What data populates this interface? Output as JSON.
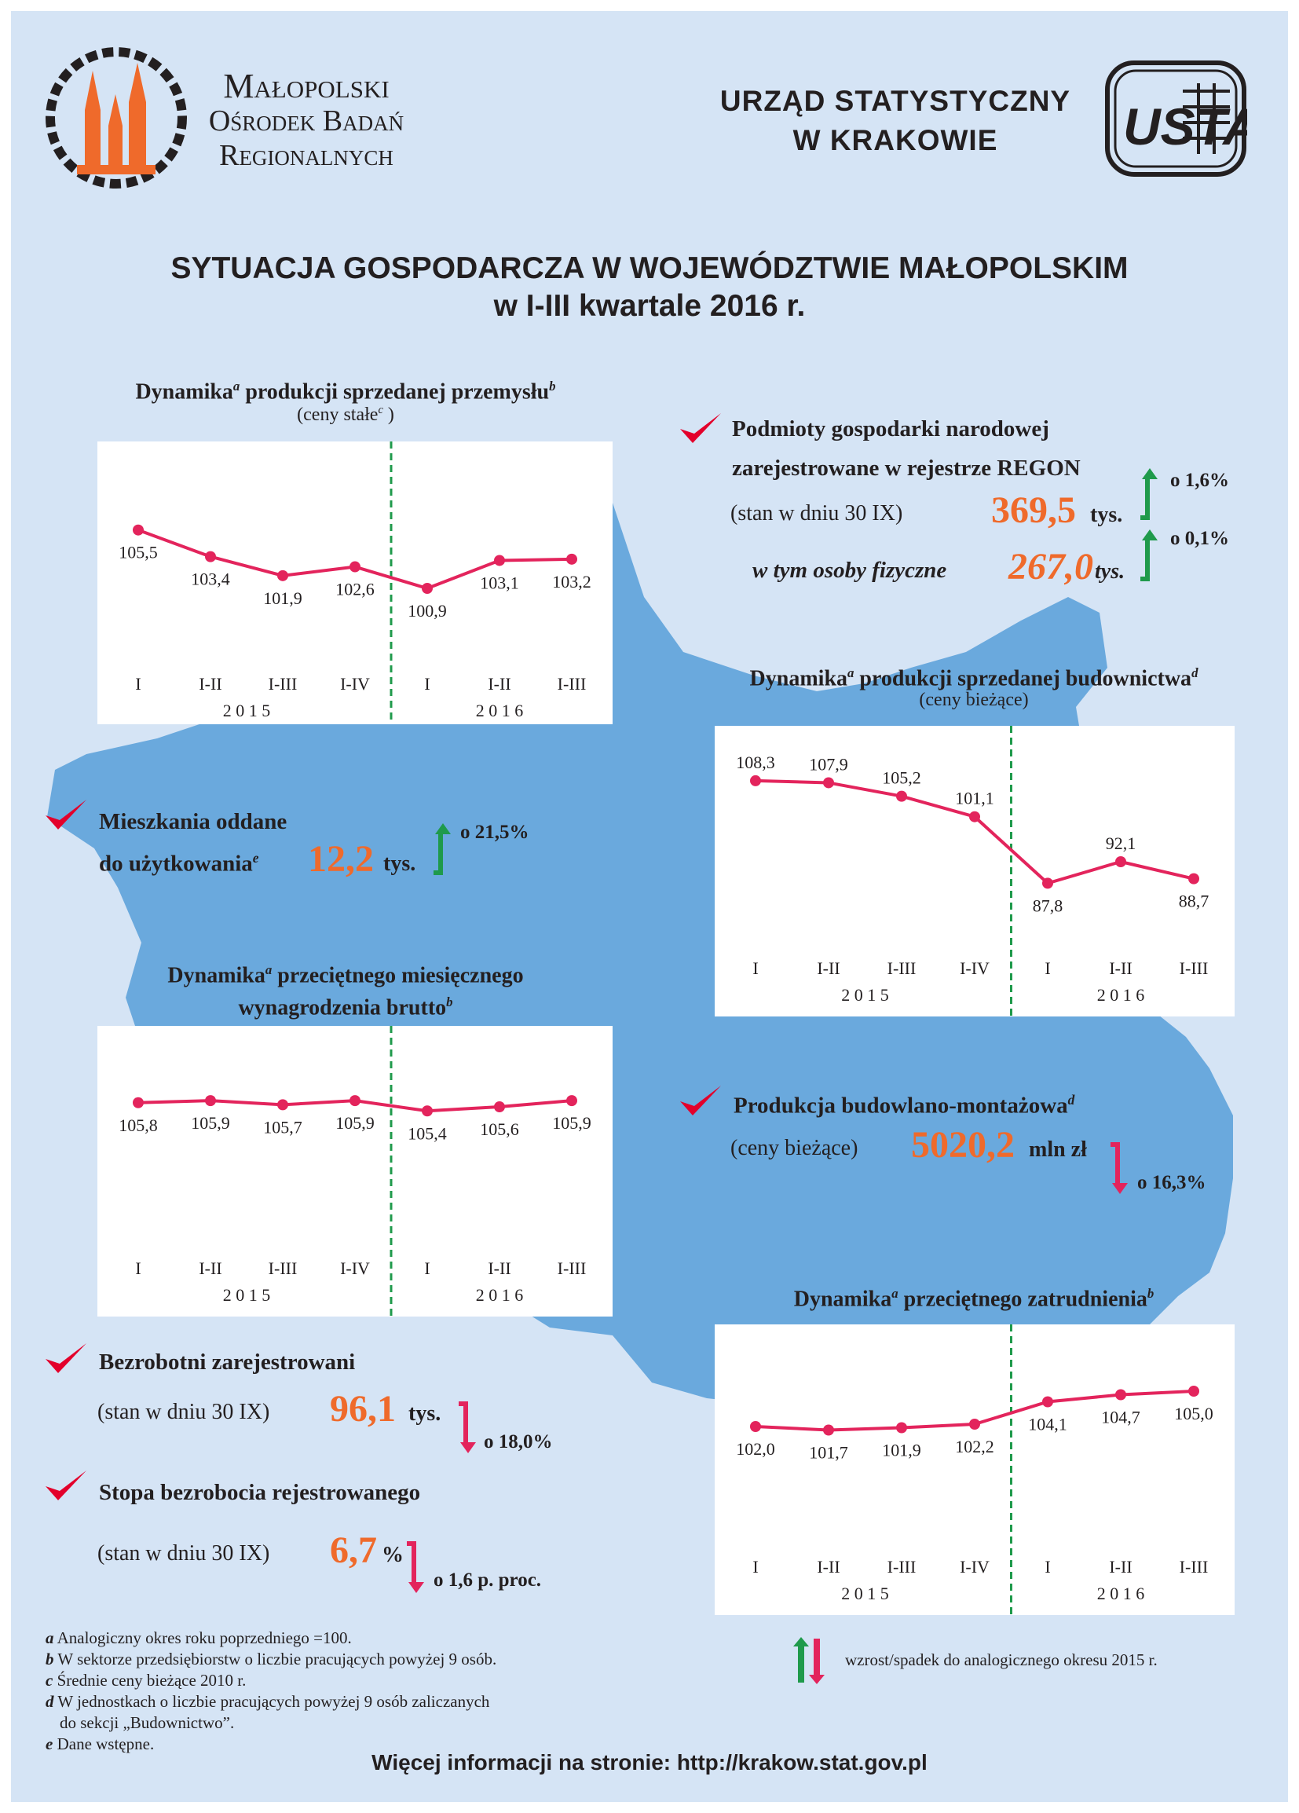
{
  "header": {
    "mobr": {
      "line1": "Małopolski",
      "line2": "Ośrodek Badań",
      "line3": "Regionalnych"
    },
    "office": {
      "line1": "URZĄD  STATYSTYCZNY",
      "line2": "W  KRAKOWIE"
    },
    "logo_mark": "USTAT"
  },
  "title": {
    "line1": "SYTUACJA GOSPODARCZA W WOJEWÓDZTWIE MAŁOPOLSKIM",
    "line2": "w I-III kwartale 2016 r."
  },
  "colors": {
    "background": "#d5e4f5",
    "map": "#6aa9dd",
    "series_line": "#e3245c",
    "divider": "#1f9a4b",
    "highlight": "#ef6a2b",
    "up_arrow": "#1f9a4b",
    "down_arrow": "#e3245c",
    "checkmark": "#e3002b"
  },
  "chart_data": [
    {
      "type": "line",
      "title_a": "Dynamika",
      "title_sup1": "a",
      "title_b": " produkcji sprzedanej przemysłu",
      "title_sup2": "b",
      "subtitle": "(ceny stałe",
      "subtitle_sup": "c",
      "subtitle_end": ")",
      "categories": [
        "I",
        "I-II",
        "I-III",
        "I-IV",
        "I",
        "I-II",
        "I-III"
      ],
      "year_groups": [
        {
          "label": "2 0 1 5",
          "from": 0,
          "to": 3
        },
        {
          "label": "2 0 1 6",
          "from": 4,
          "to": 6
        }
      ],
      "values": [
        105.5,
        103.4,
        101.9,
        102.6,
        100.9,
        103.1,
        103.2
      ],
      "value_labels": [
        "105,5",
        "103,4",
        "101,9",
        "102,6",
        "100,9",
        "103,1",
        "103,2"
      ],
      "label_pos": [
        "below",
        "below",
        "below",
        "below",
        "below",
        "below",
        "below"
      ],
      "ylim": [
        97,
        110
      ],
      "divider_after_index": 3
    },
    {
      "type": "line",
      "title_a": "Dynamika",
      "title_sup1": "a",
      "title_b": " produkcji sprzedanej budownictwa",
      "title_sup2": "d",
      "subtitle": "(ceny bieżące)",
      "categories": [
        "I",
        "I-II",
        "I-III",
        "I-IV",
        "I",
        "I-II",
        "I-III"
      ],
      "year_groups": [
        {
          "label": "2 0 1 5",
          "from": 0,
          "to": 3
        },
        {
          "label": "2 0 1 6",
          "from": 4,
          "to": 6
        }
      ],
      "values": [
        108.3,
        107.9,
        105.2,
        101.1,
        87.8,
        92.1,
        88.7
      ],
      "value_labels": [
        "108,3",
        "107,9",
        "105,2",
        "101,1",
        "87,8",
        "92,1",
        "88,7"
      ],
      "label_pos": [
        "above",
        "above",
        "above",
        "above",
        "below",
        "above",
        "below"
      ],
      "ylim": [
        80,
        113
      ],
      "divider_after_index": 3
    },
    {
      "type": "line",
      "title_a": "Dynamika",
      "title_sup1": "a",
      "title_b": " przeciętnego miesięcznego",
      "title_c": "wynagrodzenia brutto",
      "title_sup2": "b",
      "categories": [
        "I",
        "I-II",
        "I-III",
        "I-IV",
        "I",
        "I-II",
        "I-III"
      ],
      "year_groups": [
        {
          "label": "2 0 1 5",
          "from": 0,
          "to": 3
        },
        {
          "label": "2 0 1 6",
          "from": 4,
          "to": 6
        }
      ],
      "values": [
        105.8,
        105.9,
        105.7,
        105.9,
        105.4,
        105.6,
        105.9
      ],
      "value_labels": [
        "105,8",
        "105,9",
        "105,7",
        "105,9",
        "105,4",
        "105,6",
        "105,9"
      ],
      "label_pos": [
        "below",
        "below",
        "below",
        "below",
        "below",
        "below",
        "below"
      ],
      "ylim": [
        100,
        108
      ],
      "divider_after_index": 3
    },
    {
      "type": "line",
      "title_a": "Dynamika",
      "title_sup1": "a",
      "title_b": " przeciętnego zatrudnienia",
      "title_sup2": "b",
      "categories": [
        "I",
        "I-II",
        "I-III",
        "I-IV",
        "I",
        "I-II",
        "I-III"
      ],
      "year_groups": [
        {
          "label": "2 0 1 5",
          "from": 0,
          "to": 3
        },
        {
          "label": "2 0 1 6",
          "from": 4,
          "to": 6
        }
      ],
      "values": [
        102.0,
        101.7,
        101.9,
        102.2,
        104.1,
        104.7,
        105.0
      ],
      "value_labels": [
        "102,0",
        "101,7",
        "101,9",
        "102,2",
        "104,1",
        "104,7",
        "105,0"
      ],
      "label_pos": [
        "below",
        "below",
        "below",
        "below",
        "below",
        "below",
        "below"
      ],
      "ylim": [
        94,
        108
      ],
      "divider_after_index": 3
    }
  ],
  "stats": {
    "regon": {
      "label1": "Podmioty gospodarki narodowej",
      "label2": "zarejestrowane w rejestrze REGON",
      "state": "(stan w dniu 30 IX)",
      "value": "369,5",
      "unit": "tys.",
      "change": "o 1,6%",
      "direction": "up"
    },
    "regon_persons": {
      "label": "w tym osoby fizyczne",
      "value": "267,0",
      "unit": "tys.",
      "change": "o 0,1%",
      "direction": "up"
    },
    "dwellings": {
      "label1": "Mieszkania oddane",
      "label2": "do użytkowania",
      "label2_sup": "e",
      "value": "12,2",
      "unit": "tys.",
      "change": "o 21,5%",
      "direction": "up"
    },
    "construction_output": {
      "label": "Produkcja budowlano-montażowa",
      "label_sup": "d",
      "note": "(ceny bieżące)",
      "value": "5020,2",
      "unit": "mln zł",
      "change": "o 16,3%",
      "direction": "down"
    },
    "unemployed": {
      "label": "Bezrobotni zarejestrowani",
      "state": "(stan w dniu 30 IX)",
      "value": "96,1",
      "unit": "tys.",
      "change": "o 18,0%",
      "direction": "down"
    },
    "unemployment_rate": {
      "label": "Stopa bezrobocia rejestrowanego",
      "state": "(stan w dniu 30 IX)",
      "value": "6,7",
      "unit": "%",
      "change": "o 1,6 p. proc.",
      "direction": "down"
    }
  },
  "footnotes": [
    {
      "key": "a",
      "text": "Analogiczny okres roku poprzedniego =100."
    },
    {
      "key": "b",
      "text": "W sektorze przedsiębiorstw o liczbie pracujących powyżej 9 osób."
    },
    {
      "key": "c",
      "text": "Średnie ceny bieżące 2010 r."
    },
    {
      "key": "d",
      "text": "W jednostkach o liczbie pracujących powyżej 9 osób zaliczanych",
      "text2": "do sekcji „Budownictwo”."
    },
    {
      "key": "e",
      "text": "Dane wstępne."
    }
  ],
  "legend": {
    "text": "wzrost/spadek do analogicznego okresu 2015 r."
  },
  "footer": {
    "text": "Więcej informacji na stronie: http://krakow.stat.gov.pl"
  }
}
